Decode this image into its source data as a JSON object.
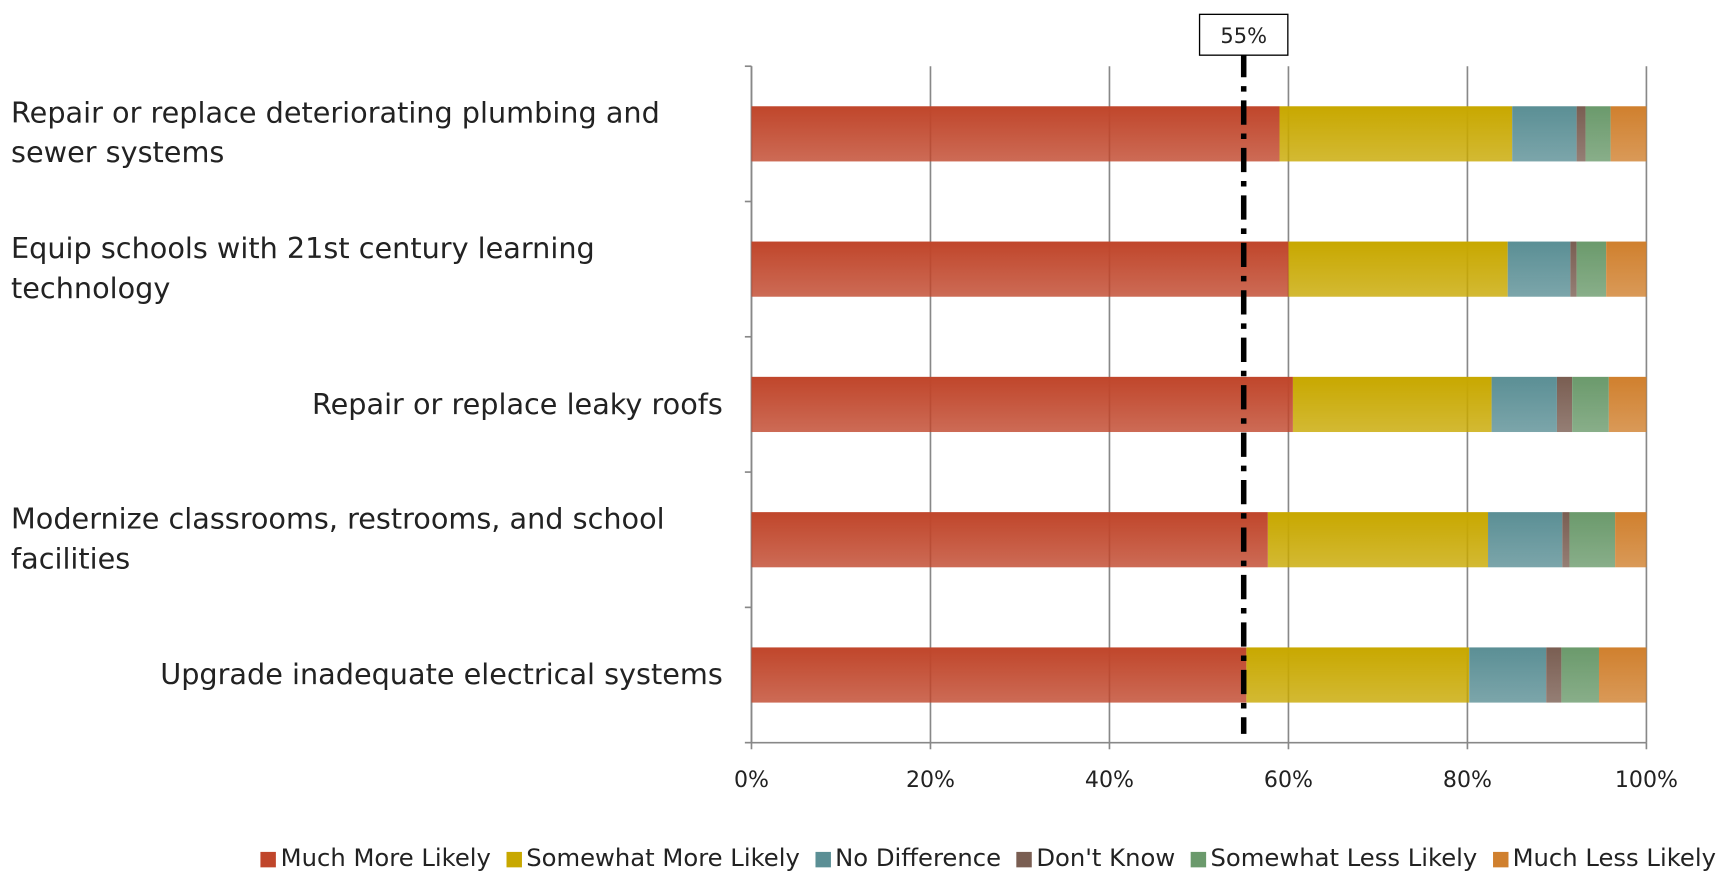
{
  "chart_data": {
    "type": "stacked_barh",
    "categories": [
      "Repair or replace deteriorating plumbing and sewer systems",
      "Equip schools with 21st century learning technology",
      "Repair or replace leaky roofs",
      "Modernize classrooms, restrooms, and school facilities",
      "Upgrade inadequate electrical systems"
    ],
    "series": [
      {
        "name": "Much More Likely",
        "color": "#c0462b",
        "values": [
          59,
          60,
          60.5,
          57.7,
          55.3
        ]
      },
      {
        "name": "Somewhat More Likely",
        "color": "#c8a800",
        "values": [
          26,
          24.5,
          22.2,
          24.6,
          24.9
        ]
      },
      {
        "name": "No Difference",
        "color": "#5b8f95",
        "values": [
          7.2,
          7,
          7.3,
          8.3,
          8.6
        ]
      },
      {
        "name": "Don't Know",
        "color": "#7a5e52",
        "values": [
          1,
          0.7,
          1.7,
          0.8,
          1.7
        ]
      },
      {
        "name": "Somewhat Less Likely",
        "color": "#6b9a6c",
        "values": [
          2.8,
          3.3,
          4.1,
          5.1,
          4.2
        ]
      },
      {
        "name": "Much Less Likely",
        "color": "#d0802e",
        "values": [
          4,
          4.5,
          4.2,
          3.5,
          5.3
        ]
      }
    ],
    "xlim": [
      0,
      100
    ],
    "xticks": [
      {
        "value": 0,
        "label": "0%"
      },
      {
        "value": 20,
        "label": "20%"
      },
      {
        "value": 40,
        "label": "40%"
      },
      {
        "value": 60,
        "label": "60%"
      },
      {
        "value": 80,
        "label": "80%"
      },
      {
        "value": 100,
        "label": "100%"
      }
    ],
    "grid": true,
    "reference_line": {
      "value": 55,
      "label": "55%"
    }
  }
}
